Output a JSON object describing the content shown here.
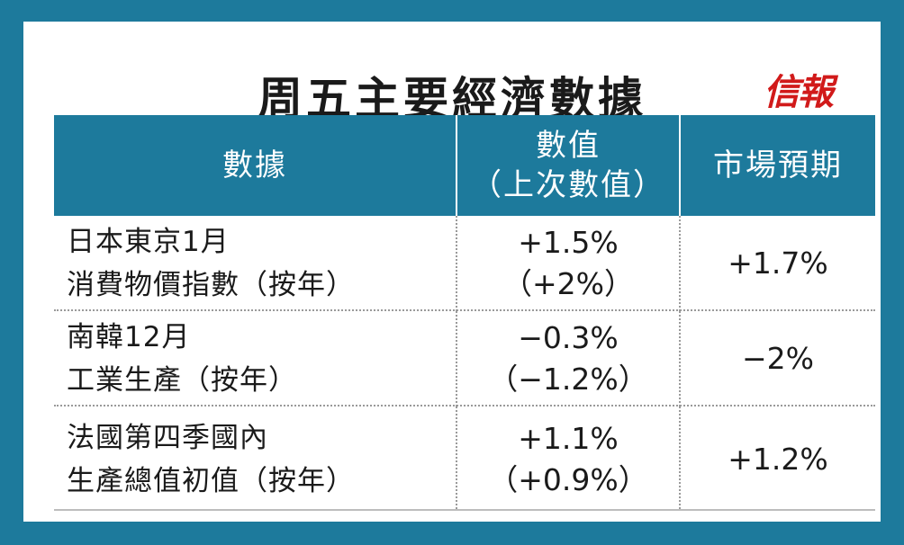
{
  "title": "周五主要經濟數據",
  "logo": "信報",
  "header": {
    "col1": "數據",
    "col2_line1": "數值",
    "col2_line2": "（上次數值）",
    "col3": "市場預期"
  },
  "rows": [
    {
      "name_line1": "日本東京1月",
      "name_line2": "消費物價指數（按年）",
      "value": "+1.5%",
      "previous": "（+2%）",
      "expected": "+1.7%"
    },
    {
      "name_line1": "南韓12月",
      "name_line2": "工業生產（按年）",
      "value": "−0.3%",
      "previous": "（−1.2%）",
      "expected": "−2%"
    },
    {
      "name_line1": "法國第四季國內",
      "name_line2": "生產總值初值（按年）",
      "value": "+1.1%",
      "previous": "（+0.9%）",
      "expected": "+1.2%"
    }
  ],
  "colors": {
    "frame": "#1d7a9c",
    "header_bg": "#1d7a9c",
    "logo": "#d11a1a"
  }
}
